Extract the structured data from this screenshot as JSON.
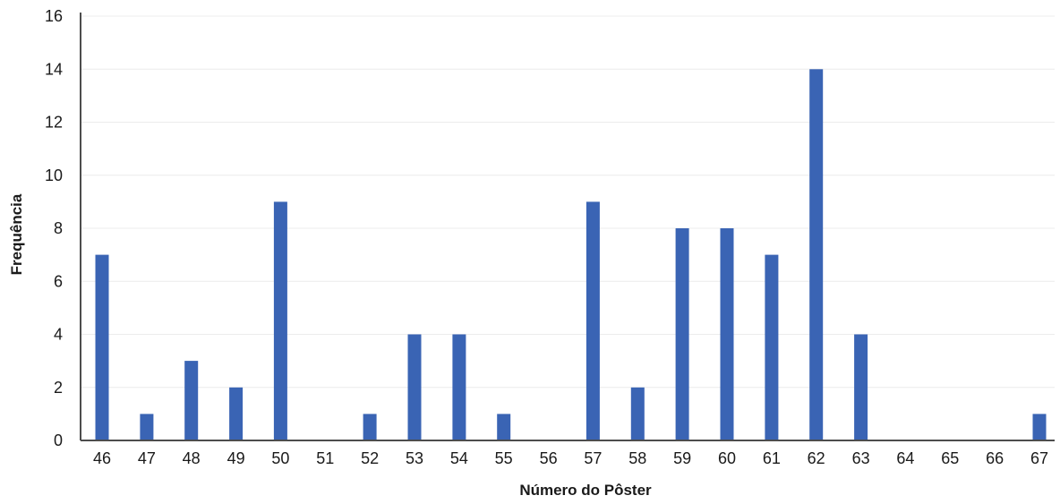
{
  "chart_data": {
    "type": "bar",
    "categories": [
      "46",
      "47",
      "48",
      "49",
      "50",
      "51",
      "52",
      "53",
      "54",
      "55",
      "56",
      "57",
      "58",
      "59",
      "60",
      "61",
      "62",
      "63",
      "64",
      "65",
      "66",
      "67"
    ],
    "values": [
      7,
      1,
      3,
      2,
      9,
      0,
      1,
      4,
      4,
      1,
      0,
      9,
      2,
      8,
      8,
      7,
      14,
      4,
      0,
      0,
      0,
      1
    ],
    "title": "",
    "xlabel": "Número do Pôster",
    "ylabel": "Frequência",
    "ylim": [
      0,
      16
    ],
    "yticks": [
      0,
      2,
      4,
      6,
      8,
      10,
      12,
      14,
      16
    ],
    "grid": true,
    "legend": "none",
    "bar_color": "#3a64b4",
    "grid_color": "#ececec",
    "axis_color": "#4d4d4d"
  }
}
